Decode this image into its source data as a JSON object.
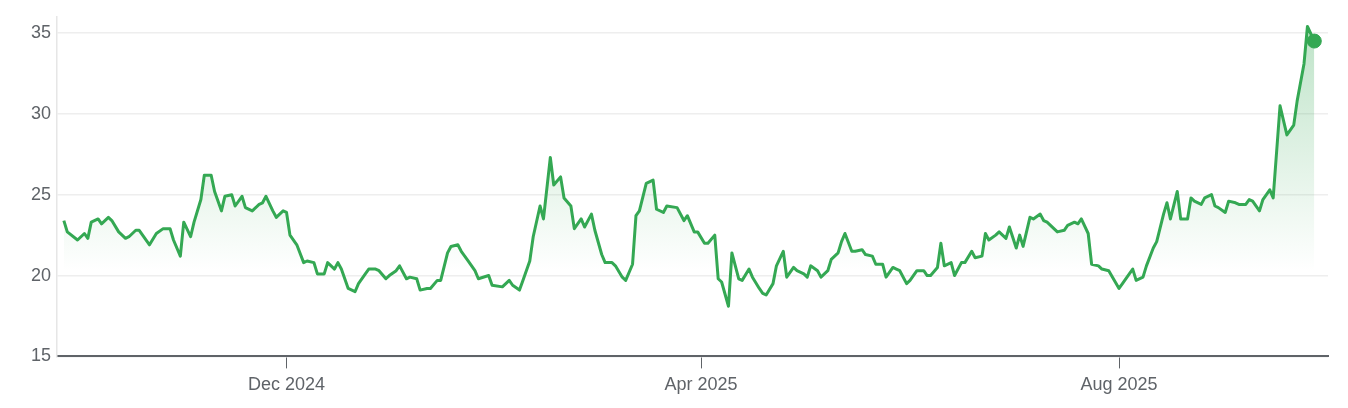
{
  "chart_data": {
    "type": "area",
    "grid": "y",
    "xlim": [
      "2024-09-25",
      "2025-10-01"
    ],
    "ylim": [
      15,
      36
    ],
    "yticks": [
      15,
      20,
      25,
      30,
      35
    ],
    "xticks": [
      {
        "value": "2024-12-01",
        "label": "Dec 2024"
      },
      {
        "value": "2025-04-01",
        "label": "Apr 2025"
      },
      {
        "value": "2025-08-01",
        "label": "Aug 2025"
      }
    ],
    "series": [
      {
        "color": "#34a853",
        "x": [
          "2024-09-27",
          "2024-09-28",
          "2024-10-01",
          "2024-10-03",
          "2024-10-04",
          "2024-10-05",
          "2024-10-07",
          "2024-10-08",
          "2024-10-10",
          "2024-10-11",
          "2024-10-13",
          "2024-10-15",
          "2024-10-16",
          "2024-10-18",
          "2024-10-19",
          "2024-10-22",
          "2024-10-24",
          "2024-10-26",
          "2024-10-28",
          "2024-10-29",
          "2024-10-31",
          "2024-11-01",
          "2024-11-03",
          "2024-11-04",
          "2024-11-06",
          "2024-11-07",
          "2024-11-09",
          "2024-11-10",
          "2024-11-12",
          "2024-11-13",
          "2024-11-15",
          "2024-11-16",
          "2024-11-18",
          "2024-11-19",
          "2024-11-21",
          "2024-11-23",
          "2024-11-24",
          "2024-11-25",
          "2024-11-27",
          "2024-11-28",
          "2024-11-30",
          "2024-12-01",
          "2024-12-02",
          "2024-12-04",
          "2024-12-06",
          "2024-12-07",
          "2024-12-09",
          "2024-12-10",
          "2024-12-12",
          "2024-12-13",
          "2024-12-15",
          "2024-12-16",
          "2024-12-17",
          "2024-12-19",
          "2024-12-21",
          "2024-12-22",
          "2024-12-24",
          "2024-12-25",
          "2024-12-27",
          "2024-12-28",
          "2024-12-30",
          "2024-12-31",
          "2025-01-02",
          "2025-01-03",
          "2025-01-05",
          "2025-01-06",
          "2025-01-08",
          "2025-01-09",
          "2025-01-11",
          "2025-01-12",
          "2025-01-14",
          "2025-01-15",
          "2025-01-17",
          "2025-01-18",
          "2025-01-20",
          "2025-01-21",
          "2025-01-23",
          "2025-01-25",
          "2025-01-26",
          "2025-01-29",
          "2025-01-30",
          "2025-02-02",
          "2025-02-04",
          "2025-02-05",
          "2025-02-07",
          "2025-02-08",
          "2025-02-10",
          "2025-02-11",
          "2025-02-13",
          "2025-02-14",
          "2025-02-16",
          "2025-02-17",
          "2025-02-19",
          "2025-02-20",
          "2025-02-22",
          "2025-02-23",
          "2025-02-25",
          "2025-02-26",
          "2025-02-28",
          "2025-03-01",
          "2025-03-03",
          "2025-03-04",
          "2025-03-06",
          "2025-03-07",
          "2025-03-09",
          "2025-03-10",
          "2025-03-12",
          "2025-03-13",
          "2025-03-14",
          "2025-03-16",
          "2025-03-18",
          "2025-03-19",
          "2025-03-21",
          "2025-03-22",
          "2025-03-25",
          "2025-03-27",
          "2025-03-28",
          "2025-03-30",
          "2025-03-31",
          "2025-04-02",
          "2025-04-03",
          "2025-04-05",
          "2025-04-06",
          "2025-04-07",
          "2025-04-09",
          "2025-04-10",
          "2025-04-12",
          "2025-04-13",
          "2025-04-15",
          "2025-04-16",
          "2025-04-18",
          "2025-04-19",
          "2025-04-20",
          "2025-04-22",
          "2025-04-23",
          "2025-04-25",
          "2025-04-26",
          "2025-04-28",
          "2025-04-29",
          "2025-05-01",
          "2025-05-02",
          "2025-05-03",
          "2025-05-05",
          "2025-05-06",
          "2025-05-08",
          "2025-05-09",
          "2025-05-11",
          "2025-05-12",
          "2025-05-13",
          "2025-05-15",
          "2025-05-16",
          "2025-05-18",
          "2025-05-19",
          "2025-05-21",
          "2025-05-22",
          "2025-05-24",
          "2025-05-25",
          "2025-05-27",
          "2025-05-28",
          "2025-05-29",
          "2025-05-31",
          "2025-06-01",
          "2025-06-03",
          "2025-06-05",
          "2025-06-06",
          "2025-06-07",
          "2025-06-09",
          "2025-06-10",
          "2025-06-11",
          "2025-06-13",
          "2025-06-14",
          "2025-06-16",
          "2025-06-17",
          "2025-06-19",
          "2025-06-20",
          "2025-06-22",
          "2025-06-23",
          "2025-06-24",
          "2025-06-26",
          "2025-06-27",
          "2025-06-29",
          "2025-06-30",
          "2025-07-02",
          "2025-07-03",
          "2025-07-04",
          "2025-07-06",
          "2025-07-07",
          "2025-07-09",
          "2025-07-10",
          "2025-07-11",
          "2025-07-13",
          "2025-07-14",
          "2025-07-16",
          "2025-07-17",
          "2025-07-19",
          "2025-07-20",
          "2025-07-21",
          "2025-07-23",
          "2025-07-24",
          "2025-07-26",
          "2025-07-27",
          "2025-07-29",
          "2025-08-01",
          "2025-08-02",
          "2025-08-04",
          "2025-08-05",
          "2025-08-06",
          "2025-08-08",
          "2025-08-09",
          "2025-08-11",
          "2025-08-12",
          "2025-08-14",
          "2025-08-15",
          "2025-08-16",
          "2025-08-18",
          "2025-08-19",
          "2025-08-21",
          "2025-08-22",
          "2025-08-23",
          "2025-08-25",
          "2025-08-26",
          "2025-08-28",
          "2025-08-29",
          "2025-08-30",
          "2025-09-01",
          "2025-09-02",
          "2025-09-04",
          "2025-09-05",
          "2025-09-07",
          "2025-09-08",
          "2025-09-09",
          "2025-09-11",
          "2025-09-12",
          "2025-09-14",
          "2025-09-15",
          "2025-09-17",
          "2025-09-18",
          "2025-09-19",
          "2025-09-21",
          "2025-09-22",
          "2025-09-24",
          "2025-09-25",
          "2025-09-27"
        ],
        "values": [
          23.4,
          22.7,
          22.2,
          22.6,
          22.3,
          23.3,
          23.5,
          23.2,
          23.6,
          23.4,
          22.7,
          22.3,
          22.4,
          22.8,
          22.8,
          21.9,
          22.6,
          22.9,
          22.9,
          22.2,
          21.2,
          23.3,
          22.4,
          23.3,
          24.7,
          26.2,
          26.2,
          25.2,
          24.0,
          24.9,
          25.0,
          24.3,
          24.9,
          24.2,
          24.0,
          24.4,
          24.5,
          24.9,
          24.0,
          23.6,
          24.0,
          23.9,
          22.5,
          21.9,
          20.8,
          20.9,
          20.8,
          20.1,
          20.1,
          20.8,
          20.4,
          20.8,
          20.4,
          19.2,
          19.0,
          19.5,
          20.1,
          20.4,
          20.4,
          20.3,
          19.8,
          20.0,
          20.3,
          20.6,
          19.8,
          19.9,
          19.8,
          19.1,
          19.2,
          19.2,
          19.7,
          19.7,
          21.4,
          21.8,
          21.9,
          21.5,
          20.9,
          20.3,
          19.8,
          20.0,
          19.4,
          19.3,
          19.7,
          19.4,
          19.1,
          19.7,
          20.9,
          22.4,
          24.3,
          23.5,
          27.3,
          25.6,
          26.1,
          24.8,
          24.3,
          22.9,
          23.5,
          23.0,
          23.8,
          22.8,
          21.3,
          20.8,
          20.8,
          20.6,
          19.9,
          19.7,
          20.7,
          23.7,
          24.0,
          25.7,
          25.9,
          24.1,
          23.9,
          24.3,
          24.2,
          23.4,
          23.7,
          22.7,
          22.7,
          22.0,
          22.0,
          22.5,
          19.8,
          19.6,
          18.1,
          21.4,
          19.8,
          19.7,
          20.4,
          19.9,
          19.2,
          18.9,
          18.8,
          19.5,
          20.6,
          21.5,
          19.9,
          20.5,
          20.3,
          20.1,
          19.9,
          20.6,
          20.3,
          19.9,
          20.3,
          21.0,
          21.4,
          22.1,
          22.6,
          21.5,
          21.5,
          21.6,
          21.3,
          21.2,
          20.7,
          20.7,
          19.9,
          20.5,
          20.4,
          20.3,
          19.5,
          19.7,
          20.3,
          20.3,
          20.0,
          20.0,
          20.5,
          22.0,
          20.6,
          20.8,
          20.0,
          20.8,
          20.8,
          21.5,
          21.1,
          21.2,
          22.6,
          22.2,
          22.5,
          22.7,
          22.3,
          23.0,
          21.7,
          22.5,
          21.8,
          23.6,
          23.5,
          23.8,
          23.4,
          23.3,
          22.9,
          22.7,
          22.8,
          23.1,
          23.3,
          23.2,
          23.5,
          22.6,
          20.7,
          20.6,
          20.4,
          20.3,
          19.2,
          19.5,
          20.1,
          20.4,
          19.7,
          19.9,
          20.6,
          21.7,
          22.1,
          23.8,
          24.5,
          23.5,
          25.2,
          23.5,
          23.5,
          24.8,
          24.6,
          24.4,
          24.8,
          25.0,
          24.3,
          24.2,
          23.9,
          24.6,
          24.5,
          24.4,
          24.4,
          24.7,
          24.6,
          24.0,
          24.7,
          25.3,
          24.8,
          30.5,
          29.6,
          28.7,
          29.3,
          30.8,
          33.1,
          35.4,
          34.5
        ]
      },
      {
        "type": "scatter",
        "color": "#34a853",
        "x": [
          "2025-09-27"
        ],
        "values": [
          34.5
        ]
      }
    ]
  }
}
